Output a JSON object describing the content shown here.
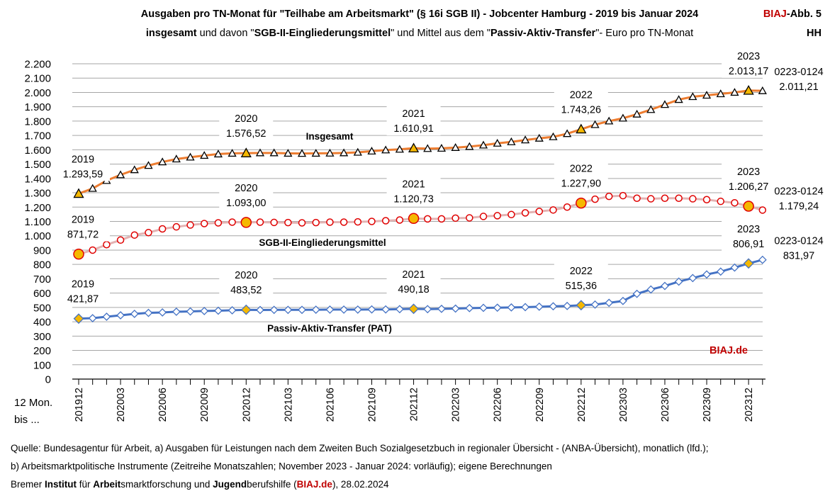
{
  "chart_data": {
    "type": "line",
    "title": [
      {
        "text": "Ausgaben pro TN-Monat für \"Teilhabe am Arbeitsmarkt\" (§ 16i SGB II) - Jobcenter Hamburg - 2019 bis Januar 2024",
        "bold": true
      }
    ],
    "subtitle": [
      {
        "text": "insgesamt",
        "bold": true
      },
      {
        "text": " und davon \"",
        "bold": false
      },
      {
        "text": "SGB-II-Eingliederungsmittel",
        "bold": true
      },
      {
        "text": "\" und Mittel aus dem \"",
        "bold": false
      },
      {
        "text": "Passiv-Aktiv-Transfer",
        "bold": true
      },
      {
        "text": "\"- Euro pro TN-Monat",
        "bold": false
      }
    ],
    "badge": [
      [
        {
          "text": "BIAJ",
          "color": "#c00000"
        },
        {
          "text": "-Abb. 5",
          "color": "#000000"
        }
      ],
      [
        {
          "text": "HH",
          "color": "#000000"
        }
      ]
    ],
    "watermark": "BIAJ.de",
    "x_label": [
      "12 Mon.",
      "bis ..."
    ],
    "categories": [
      "201912",
      null,
      null,
      "202003",
      null,
      null,
      "202006",
      null,
      null,
      "202009",
      null,
      null,
      "202012",
      null,
      null,
      "202103",
      null,
      null,
      "202106",
      null,
      null,
      "202109",
      null,
      null,
      "202112",
      null,
      null,
      "202203",
      null,
      null,
      "202206",
      null,
      null,
      "202209",
      null,
      null,
      "202212",
      null,
      null,
      "202303",
      null,
      null,
      "202306",
      null,
      null,
      "202309",
      null,
      null,
      "202312",
      null
    ],
    "ylim": [
      0,
      2200
    ],
    "yticks": [
      0,
      100,
      200,
      300,
      400,
      500,
      600,
      700,
      800,
      900,
      {
        "value": 1000,
        "label": "1.000"
      },
      {
        "value": 1100,
        "label": "1.100"
      },
      {
        "value": 1200,
        "label": "1.200"
      },
      {
        "value": 1300,
        "label": "1.300"
      },
      {
        "value": 1400,
        "label": "1.400"
      },
      {
        "value": 1500,
        "label": "1.500"
      },
      {
        "value": 1600,
        "label": "1.600"
      },
      {
        "value": 1700,
        "label": "1.700"
      },
      {
        "value": 1800,
        "label": "1.800"
      },
      {
        "value": 1900,
        "label": "1.900"
      },
      {
        "value": 2000,
        "label": "2.000"
      },
      {
        "value": 2100,
        "label": "2.100"
      },
      {
        "value": 2200,
        "label": "2.200"
      }
    ],
    "grid": true,
    "highlight_color": "#f5b800",
    "highlighted_points": [
      0,
      12,
      24,
      36,
      48
    ],
    "series": [
      {
        "name": "Insgesamt",
        "color": "#ed7d31",
        "marker": "triangle",
        "marker_color": "#000000",
        "values": [
          1293.59,
          1330,
          1385,
          1425,
          1460,
          1490,
          1515,
          1535,
          1548,
          1560,
          1570,
          1575,
          1576.52,
          1578,
          1578,
          1575,
          1574,
          1575,
          1576,
          1578,
          1582,
          1590,
          1598,
          1603,
          1610.91,
          1608,
          1610,
          1615,
          1622,
          1632,
          1645,
          1655,
          1668,
          1680,
          1690,
          1712,
          1743.26,
          1775,
          1800,
          1820,
          1848,
          1880,
          1915,
          1950,
          1970,
          1980,
          1990,
          2000,
          2013.17,
          2011.21
        ],
        "point_labels": [
          {
            "index": 0,
            "label": "2019",
            "value_label": "1.293,59"
          },
          {
            "index": 12,
            "label": "2020",
            "value_label": "1.576,52"
          },
          {
            "index": 24,
            "label": "2021",
            "value_label": "1.610,91"
          },
          {
            "index": 36,
            "label": "2022",
            "value_label": "1.743,26"
          },
          {
            "index": 48,
            "label": "2023",
            "value_label": "2.013,17"
          },
          {
            "index": 49,
            "label": "0223-0124",
            "value_label": "2.011,21"
          }
        ]
      },
      {
        "name": "SGB-II-Eingliederungsmittel",
        "color": "#e3b3b3",
        "marker": "circle",
        "marker_color": "#e00000",
        "values": [
          871.72,
          900,
          938,
          970,
          1005,
          1022,
          1048,
          1062,
          1075,
          1085,
          1090,
          1095,
          1093.0,
          1095,
          1093,
          1092,
          1090,
          1092,
          1095,
          1095,
          1097,
          1100,
          1105,
          1110,
          1120.73,
          1118,
          1118,
          1123,
          1125,
          1135,
          1140,
          1148,
          1160,
          1170,
          1180,
          1200,
          1227.9,
          1255,
          1275,
          1280,
          1262,
          1258,
          1262,
          1262,
          1258,
          1252,
          1240,
          1230,
          1206.27,
          1179.24
        ],
        "point_labels": [
          {
            "index": 0,
            "label": "2019",
            "value_label": "871,72"
          },
          {
            "index": 12,
            "label": "2020",
            "value_label": "1.093,00"
          },
          {
            "index": 24,
            "label": "2021",
            "value_label": "1.120,73"
          },
          {
            "index": 36,
            "label": "2022",
            "value_label": "1.227,90"
          },
          {
            "index": 48,
            "label": "2023",
            "value_label": "1.206,27"
          },
          {
            "index": 49,
            "label": "0223-0124",
            "value_label": "1.179,24"
          }
        ]
      },
      {
        "name": "Passiv-Aktiv-Transfer (PAT)",
        "color": "#4472c4",
        "marker": "diamond",
        "marker_color": "#4472c4",
        "values": [
          421.87,
          425,
          435,
          445,
          455,
          462,
          465,
          470,
          472,
          475,
          477,
          480,
          483.52,
          482,
          483,
          483,
          483,
          484,
          485,
          485,
          485,
          486,
          486,
          488,
          490.18,
          488,
          490,
          492,
          495,
          497,
          498,
          500,
          502,
          505,
          508,
          510,
          515.36,
          520,
          532,
          545,
          595,
          625,
          650,
          680,
          705,
          730,
          750,
          778,
          806.91,
          831.97
        ],
        "point_labels": [
          {
            "index": 0,
            "label": "2019",
            "value_label": "421,87"
          },
          {
            "index": 12,
            "label": "2020",
            "value_label": "483,52"
          },
          {
            "index": 24,
            "label": "2021",
            "value_label": "490,18"
          },
          {
            "index": 36,
            "label": "2022",
            "value_label": "515,36"
          },
          {
            "index": 48,
            "label": "2023",
            "value_label": "806,91"
          },
          {
            "index": 49,
            "label": "0223-0124",
            "value_label": "831,97"
          }
        ]
      }
    ],
    "source": [
      [
        {
          "text": "Quelle: Bundesagentur für Arbeit, a) Ausgaben für Leistungen nach dem Zweiten Buch Sozialgesetzbuch in regionaler Übersicht - (ANBA-Übersicht), monatlich (lfd.);",
          "bold": false,
          "color": "#000000"
        }
      ],
      [
        {
          "text": "b) Arbeitsmarktpolitische Instrumente  (Zeitreihe Monatszahlen; November 2023 - Januar 2024: vorläufig); eigene Berechnungen",
          "bold": false,
          "color": "#000000"
        }
      ],
      [
        {
          "text": "Bremer ",
          "bold": false,
          "color": "#000000"
        },
        {
          "text": "Institut",
          "bold": true,
          "color": "#000000"
        },
        {
          "text": " für ",
          "bold": false,
          "color": "#000000"
        },
        {
          "text": "Arbeit",
          "bold": true,
          "color": "#000000"
        },
        {
          "text": "smarktforschung und ",
          "bold": false,
          "color": "#000000"
        },
        {
          "text": "Jugend",
          "bold": true,
          "color": "#000000"
        },
        {
          "text": "berufshilfe (",
          "bold": false,
          "color": "#000000"
        },
        {
          "text": "BIAJ.de",
          "bold": true,
          "color": "#c00000"
        },
        {
          "text": "), 28.02.2024",
          "bold": false,
          "color": "#000000"
        }
      ]
    ]
  }
}
